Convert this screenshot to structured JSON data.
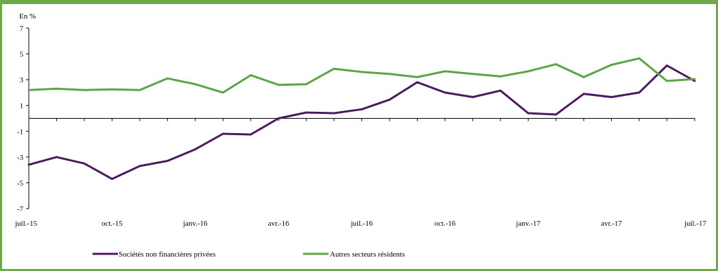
{
  "chart_data": {
    "type": "line",
    "unit_label": "En %",
    "ylim": [
      -7,
      7
    ],
    "yticks": [
      "7",
      "5",
      "3",
      "1",
      "-1",
      "-3",
      "-5",
      "-7"
    ],
    "ytick_values": [
      7,
      5,
      3,
      1,
      -1,
      -3,
      -5,
      -7
    ],
    "x_tick_labels": [
      "juil.-15",
      "oct.-15",
      "janv.-16",
      "avr.-16",
      "juil.-16",
      "oct.-16",
      "janv.-17",
      "avr.-17",
      "juil.-17"
    ],
    "x_tick_indices": [
      0,
      3,
      6,
      9,
      12,
      15,
      18,
      21,
      24
    ],
    "x": [
      "juil.-15",
      "août-15",
      "sept.-15",
      "oct.-15",
      "nov.-15",
      "déc.-15",
      "janv.-16",
      "févr.-16",
      "mars-16",
      "avr.-16",
      "mai-16",
      "juin-16",
      "juil.-16",
      "août-16",
      "sept.-16",
      "oct.-16",
      "nov.-16",
      "déc.-16",
      "janv.-17",
      "févr.-17",
      "mars-17",
      "avr.-17",
      "mai-17",
      "juin-17",
      "juil.-17"
    ],
    "series": [
      {
        "name": "Sociétés non financières privées",
        "color": "#4b1a5e",
        "values": [
          -3.6,
          -3.0,
          -3.5,
          -4.7,
          -3.7,
          -3.3,
          -2.4,
          -1.2,
          -1.25,
          0.0,
          0.45,
          0.4,
          0.7,
          1.45,
          2.8,
          2.0,
          1.65,
          2.15,
          0.4,
          0.3,
          1.9,
          1.65,
          2.0,
          4.1,
          2.9
        ]
      },
      {
        "name": "Autres secteurs résidents",
        "color": "#5da444",
        "values": [
          2.2,
          2.3,
          2.2,
          2.25,
          2.2,
          3.1,
          2.65,
          2.0,
          3.35,
          2.6,
          2.65,
          3.85,
          3.6,
          3.45,
          3.2,
          3.65,
          3.45,
          3.25,
          3.65,
          4.2,
          3.2,
          4.15,
          4.65,
          2.9,
          3.05
        ]
      }
    ],
    "legend_position": "bottom",
    "grid": false
  }
}
